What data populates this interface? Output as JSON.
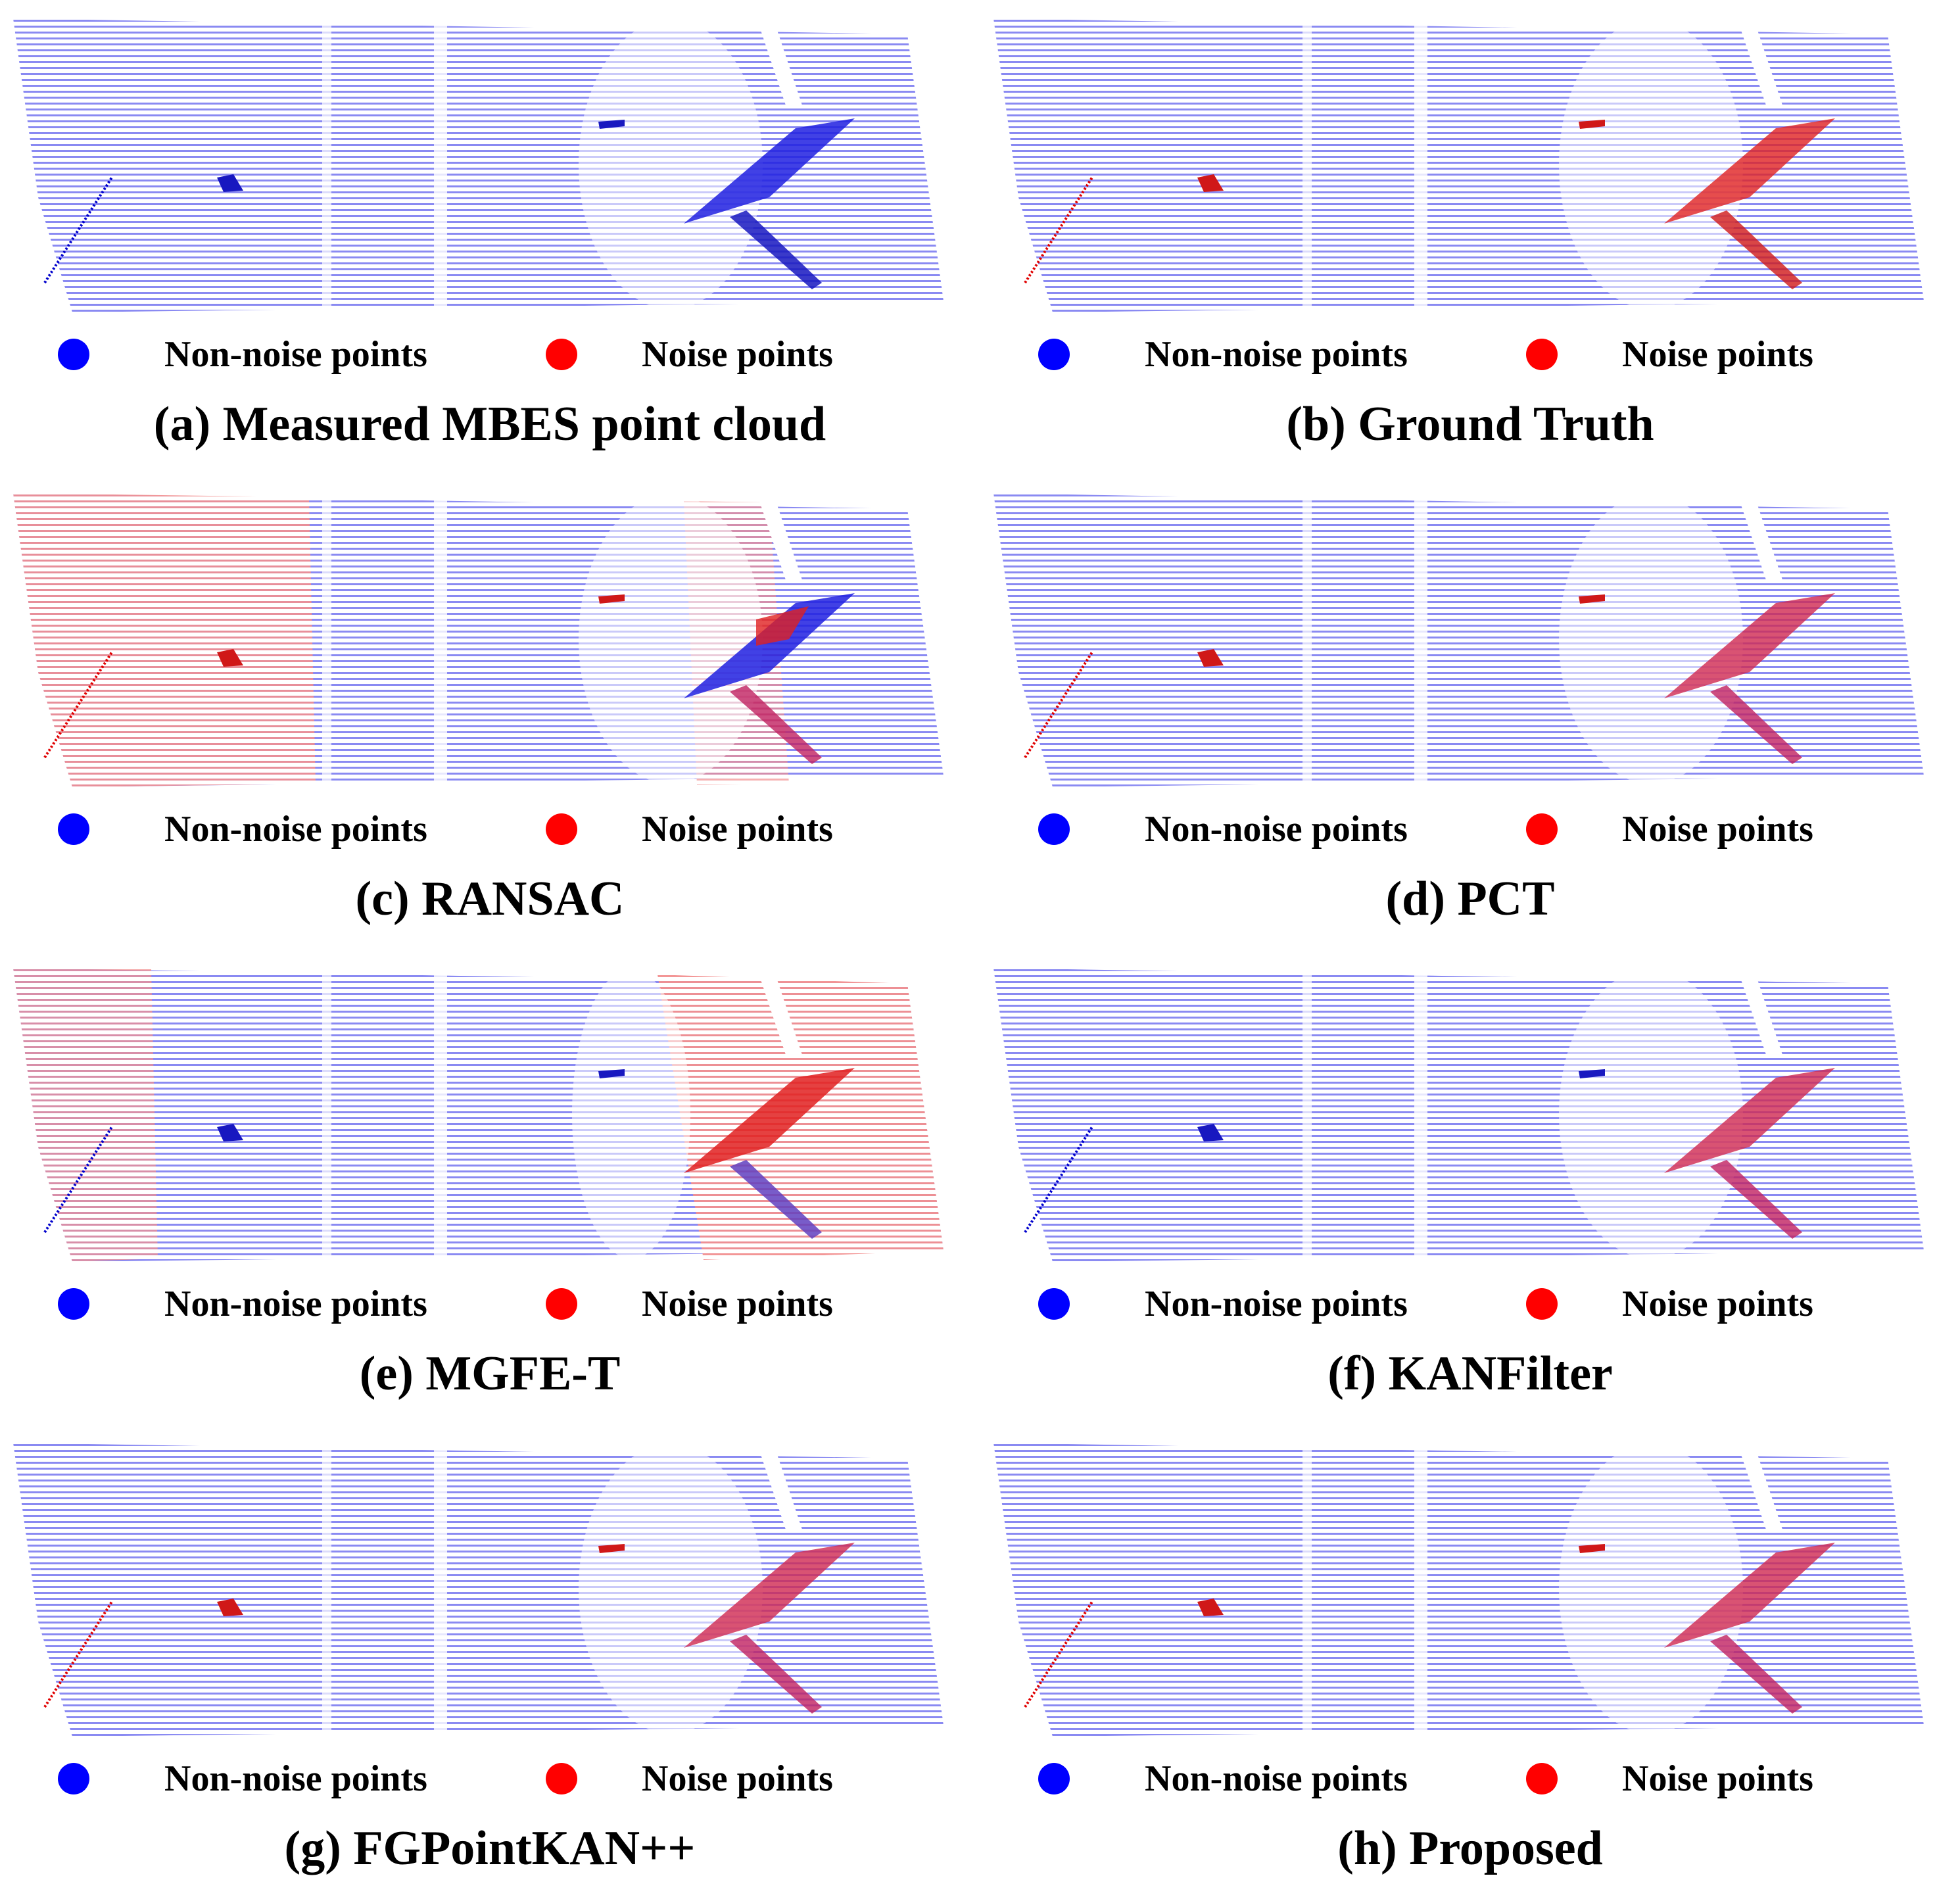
{
  "legend": {
    "non_noise": "Non-noise points",
    "noise": "Noise points",
    "non_noise_color": "#0000ff",
    "noise_color": "#ff0000"
  },
  "panels": [
    {
      "caption": "(a) Measured MBES point cloud",
      "noise_regions": [],
      "noise_feature": false
    },
    {
      "caption": "(b) Ground Truth",
      "noise_regions": [],
      "noise_feature": true
    },
    {
      "caption": "(c) RANSAC",
      "noise_regions": [
        "left-band",
        "right-band"
      ],
      "noise_feature": "partial"
    },
    {
      "caption": "(d) PCT",
      "noise_regions": [],
      "noise_feature": true
    },
    {
      "caption": "(e) MGFE-T",
      "noise_regions": [
        "left-strip",
        "right-large-band"
      ],
      "noise_feature": true
    },
    {
      "caption": "(f) KANFilter",
      "noise_regions": [],
      "noise_feature": true
    },
    {
      "caption": "(g) FGPointKAN++",
      "noise_regions": [],
      "noise_feature": true
    },
    {
      "caption": "(h) Proposed",
      "noise_regions": [],
      "noise_feature": true
    }
  ]
}
